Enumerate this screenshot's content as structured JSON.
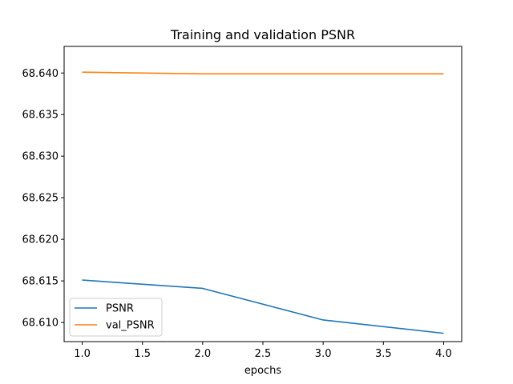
{
  "chart_data": {
    "type": "line",
    "title": "Training and validation PSNR",
    "xlabel": "epochs",
    "ylabel": "",
    "x": [
      1.0,
      2.0,
      3.0,
      4.0
    ],
    "series": [
      {
        "name": "PSNR",
        "color": "#1f77b4",
        "values": [
          68.6151,
          68.6141,
          68.6103,
          68.6087
        ]
      },
      {
        "name": "val_PSNR",
        "color": "#ff7f0e",
        "values": [
          68.6401,
          68.6399,
          68.6399,
          68.6399
        ]
      }
    ],
    "xlim": [
      0.85,
      4.15
    ],
    "ylim": [
      68.6077,
      68.6432
    ],
    "xticks": [
      1.0,
      1.5,
      2.0,
      2.5,
      3.0,
      3.5,
      4.0
    ],
    "xtick_labels": [
      "1.0",
      "1.5",
      "2.0",
      "2.5",
      "3.0",
      "3.5",
      "4.0"
    ],
    "yticks": [
      68.61,
      68.615,
      68.62,
      68.625,
      68.63,
      68.635,
      68.64
    ],
    "ytick_labels": [
      "68.610",
      "68.615",
      "68.620",
      "68.625",
      "68.630",
      "68.635",
      "68.640"
    ],
    "grid": false,
    "legend_position": "lower-left"
  }
}
